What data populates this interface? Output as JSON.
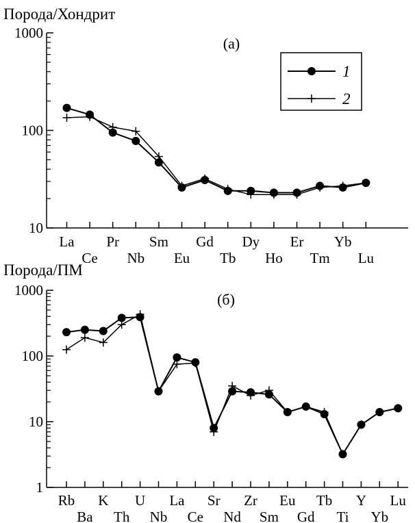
{
  "chart_data": [
    {
      "type": "line",
      "title": "(а)",
      "ylabel": "Порода/Хондрит",
      "xlabel": "",
      "yscale": "log",
      "ylim": [
        10,
        1000
      ],
      "yticks": [
        "10",
        "100",
        "1000"
      ],
      "grid": false,
      "legend_position": "top-right",
      "categories": [
        "La",
        "Ce",
        "Pr",
        "Nb",
        "Sm",
        "Eu",
        "Gd",
        "Tb",
        "Dy",
        "Ho",
        "Er",
        "Tm",
        "Yb",
        "Lu"
      ],
      "series": [
        {
          "name": "1",
          "marker": "circle",
          "values": [
            170,
            145,
            95,
            78,
            47,
            26,
            31,
            24,
            24,
            23,
            23,
            27,
            26,
            29
          ]
        },
        {
          "name": "2",
          "marker": "plus",
          "values": [
            135,
            138,
            108,
            98,
            54,
            27,
            32,
            25,
            22,
            22,
            22,
            26,
            27,
            29
          ]
        }
      ]
    },
    {
      "type": "line",
      "title": "(б)",
      "ylabel": "Порода/ПМ",
      "xlabel": "",
      "yscale": "log",
      "ylim": [
        1,
        1000
      ],
      "yticks": [
        "1",
        "10",
        "100",
        "1000"
      ],
      "grid": false,
      "categories": [
        "Rb",
        "Ba",
        "K",
        "Th",
        "U",
        "Nb",
        "La",
        "Ce",
        "Sr",
        "Nd",
        "Zr",
        "Sm",
        "Eu",
        "Gd",
        "Tb",
        "Ti",
        "Y",
        "Yb",
        "Lu"
      ],
      "series": [
        {
          "name": "1",
          "marker": "circle",
          "values": [
            230,
            250,
            240,
            380,
            390,
            29,
            95,
            80,
            8,
            29,
            28,
            26,
            14,
            17,
            13,
            3.2,
            9,
            14,
            16
          ]
        },
        {
          "name": "2",
          "marker": "plus",
          "values": [
            125,
            190,
            160,
            300,
            430,
            29,
            75,
            78,
            7,
            35,
            25,
            30,
            14,
            17,
            14,
            3.2,
            9,
            14,
            16
          ]
        }
      ]
    }
  ]
}
